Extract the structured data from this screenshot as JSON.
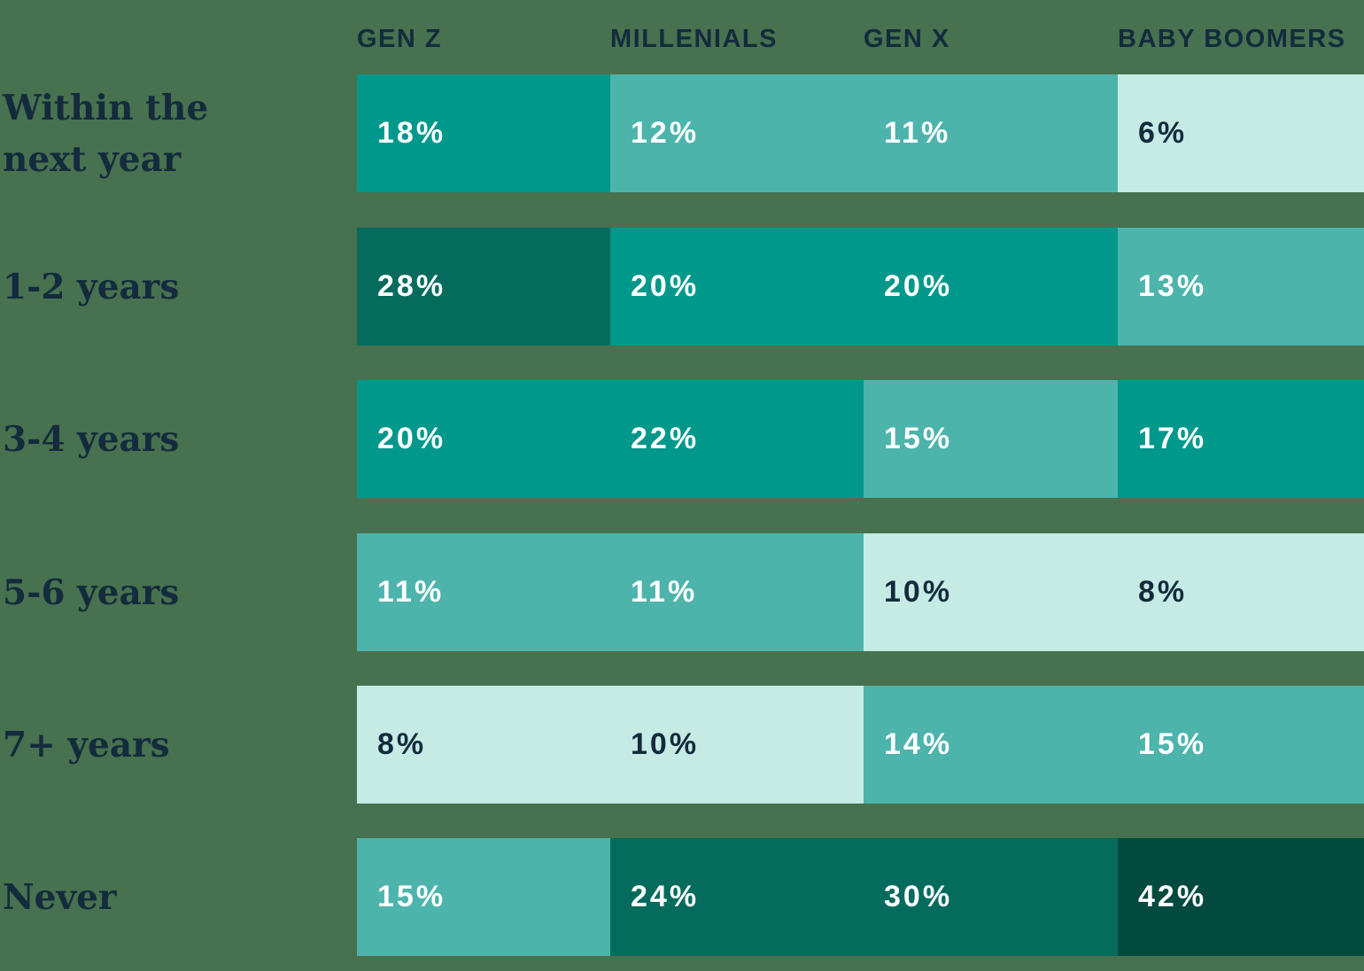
{
  "chart_data": {
    "type": "heatmap",
    "title": "",
    "unit": "percent",
    "columns": [
      "GEN Z",
      "MILLENIALS",
      "GEN X",
      "BABY BOOMERS"
    ],
    "row_categories": [
      "Within the next year",
      "1-2 years",
      "3-4 years",
      "5-6 years",
      "7+ years",
      "Never"
    ],
    "series": [
      {
        "name": "GEN Z",
        "values": [
          18,
          28,
          20,
          11,
          8,
          15
        ]
      },
      {
        "name": "MILLENIALS",
        "values": [
          12,
          20,
          22,
          11,
          10,
          24
        ]
      },
      {
        "name": "GEN X",
        "values": [
          11,
          20,
          15,
          10,
          14,
          30
        ]
      },
      {
        "name": "BABY BOOMERS",
        "values": [
          6,
          13,
          17,
          8,
          15,
          42
        ]
      }
    ],
    "legend_position": "none",
    "grid": false,
    "color_scale": {
      "6_to_10": "#C6EBE5",
      "11_to_15": "#4DB4AC",
      "17_to_22": "#00988B",
      "24_to_30": "#056B5D",
      "42": "#034A3E"
    }
  },
  "table": {
    "headers": [
      "GEN Z",
      "MILLENIALS",
      "GEN X",
      "BABY BOOMERS"
    ],
    "rows": [
      {
        "label_lines": [
          "Within the",
          "next year"
        ],
        "cells": [
          {
            "text": "18%",
            "bg": "#00988B",
            "fg": "#FFFFFF"
          },
          {
            "text": "12%",
            "bg": "#4DB4AC",
            "fg": "#FFFFFF"
          },
          {
            "text": "11%",
            "bg": "#4DB4AC",
            "fg": "#FFFFFF"
          },
          {
            "text": "6%",
            "bg": "#C6EBE5",
            "fg": "#142B3D"
          }
        ]
      },
      {
        "label_lines": [
          "1-2 years"
        ],
        "cells": [
          {
            "text": "28%",
            "bg": "#056B5D",
            "fg": "#FFFFFF"
          },
          {
            "text": "20%",
            "bg": "#00988B",
            "fg": "#FFFFFF"
          },
          {
            "text": "20%",
            "bg": "#00988B",
            "fg": "#FFFFFF"
          },
          {
            "text": "13%",
            "bg": "#4DB4AC",
            "fg": "#FFFFFF"
          }
        ]
      },
      {
        "label_lines": [
          "3-4 years"
        ],
        "cells": [
          {
            "text": "20%",
            "bg": "#00988B",
            "fg": "#FFFFFF"
          },
          {
            "text": "22%",
            "bg": "#00988B",
            "fg": "#FFFFFF"
          },
          {
            "text": "15%",
            "bg": "#4DB4AC",
            "fg": "#FFFFFF"
          },
          {
            "text": "17%",
            "bg": "#00988B",
            "fg": "#FFFFFF"
          }
        ]
      },
      {
        "label_lines": [
          "5-6 years"
        ],
        "cells": [
          {
            "text": "11%",
            "bg": "#4DB4AC",
            "fg": "#FFFFFF"
          },
          {
            "text": "11%",
            "bg": "#4DB4AC",
            "fg": "#FFFFFF"
          },
          {
            "text": "10%",
            "bg": "#C6EBE5",
            "fg": "#142B3D"
          },
          {
            "text": "8%",
            "bg": "#C6EBE5",
            "fg": "#142B3D"
          }
        ]
      },
      {
        "label_lines": [
          "7+ years"
        ],
        "cells": [
          {
            "text": "8%",
            "bg": "#C6EBE5",
            "fg": "#142B3D"
          },
          {
            "text": "10%",
            "bg": "#C6EBE5",
            "fg": "#142B3D"
          },
          {
            "text": "14%",
            "bg": "#4DB4AC",
            "fg": "#FFFFFF"
          },
          {
            "text": "15%",
            "bg": "#4DB4AC",
            "fg": "#FFFFFF"
          }
        ]
      },
      {
        "label_lines": [
          "Never"
        ],
        "cells": [
          {
            "text": "15%",
            "bg": "#4DB4AC",
            "fg": "#FFFFFF"
          },
          {
            "text": "24%",
            "bg": "#056B5D",
            "fg": "#FFFFFF"
          },
          {
            "text": "30%",
            "bg": "#056B5D",
            "fg": "#FFFFFF"
          },
          {
            "text": "42%",
            "bg": "#034A3E",
            "fg": "#FFFFFF"
          }
        ]
      }
    ]
  },
  "colors": {
    "background": "#47714F",
    "text_dark": "#142B3D",
    "text_light": "#FFFFFF"
  }
}
